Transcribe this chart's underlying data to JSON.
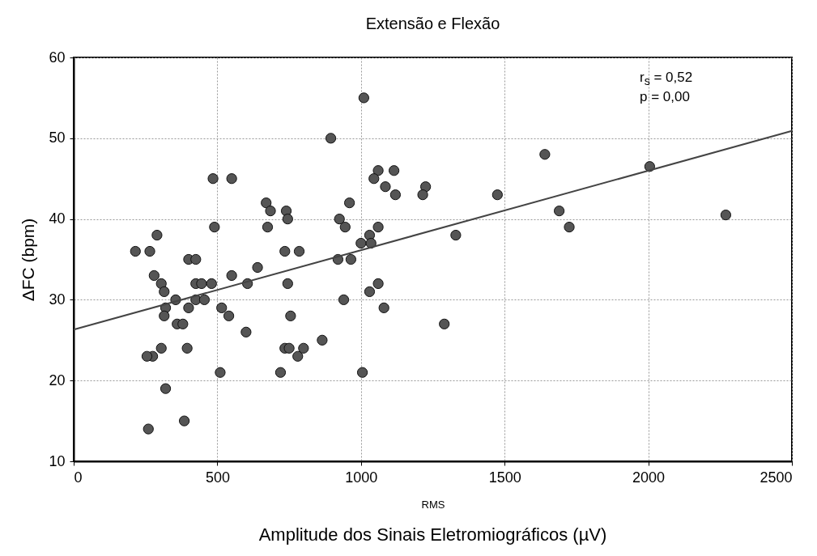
{
  "chart_data": {
    "type": "scatter",
    "title": "Extensão e Flexão",
    "xlabel": "RMS",
    "ylabel": "ΔFC (bpm)",
    "annotations": [
      "r$_{s}$ = 0,52",
      "p = 0,00",
      "Amplitude dos Sinais Eletromiográficos  (µV)"
    ],
    "xlim": [
      0,
      2500
    ],
    "xticks": [
      0,
      500,
      1000,
      1500,
      2000,
      2500
    ],
    "ylim": [
      10,
      60
    ],
    "yticks": [
      10,
      20,
      30,
      40,
      50,
      60
    ],
    "grid": true,
    "series": [
      {
        "marker": "circle",
        "color": "#555555",
        "x": [
          895,
          1010,
          1060,
          1045,
          485,
          550,
          670,
          685,
          740,
          745,
          960,
          925,
          945,
          490,
          675,
          1060,
          290,
          1030,
          1000,
          1035,
          215,
          265,
          735,
          785,
          400,
          425,
          920,
          965,
          280,
          550,
          640,
          305,
          315,
          425,
          445,
          480,
          605,
          745,
          1060,
          1030,
          355,
          425,
          455,
          400,
          515,
          940,
          320,
          315,
          540,
          755,
          1080,
          360,
          380,
          600,
          865,
          305,
          395,
          735,
          750,
          800,
          780,
          275,
          255,
          510,
          720,
          1005,
          320,
          385,
          260,
          1115,
          1085,
          1120,
          1225,
          1215,
          1475,
          1330,
          1690,
          1725,
          1290,
          1640,
          2005,
          2270
        ],
        "values": [
          50,
          55,
          46,
          45,
          45,
          45,
          42,
          41,
          41,
          40,
          42,
          40,
          39,
          39,
          39,
          39,
          38,
          38,
          37,
          37,
          36,
          36,
          36,
          36,
          35,
          35,
          35,
          35,
          33,
          33,
          34,
          32,
          31,
          32,
          32,
          32,
          32,
          32,
          32,
          31,
          30,
          30,
          30,
          29,
          29,
          30,
          29,
          28,
          28,
          28,
          29,
          27,
          27,
          26,
          25,
          24,
          24,
          24,
          24,
          24,
          23,
          23,
          23,
          21,
          21,
          21,
          19,
          15,
          14,
          46,
          44,
          43,
          44,
          43,
          43,
          38,
          41,
          39,
          27,
          48,
          46.5,
          40.5
        ]
      },
      {
        "type": "line",
        "color": "#444444",
        "x": [
          0,
          2500
        ],
        "values": [
          26.3,
          50.9
        ]
      }
    ]
  }
}
